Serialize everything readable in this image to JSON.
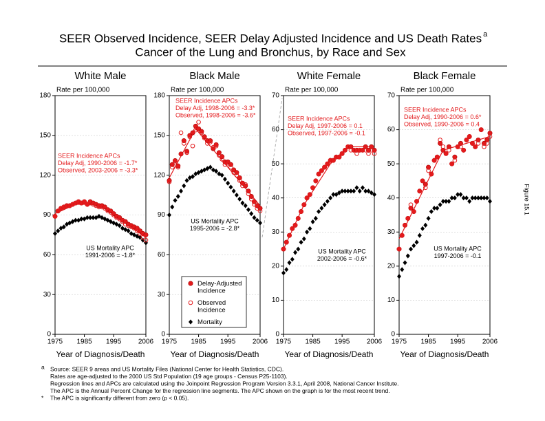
{
  "header": {
    "title": [
      "SEER Observed Incidence, SEER Delay Adjusted Incidence and US Death Rates",
      "Cancer of the Lung and Bronchus, by Race and Sex"
    ],
    "superscript": "a"
  },
  "figure_label": "Figure 15.1",
  "footnotes": [
    {
      "mark": "a",
      "lines": [
        "Source: SEER 9 areas and US Mortality Files (National Center for Health Statistics, CDC).",
        "Rates are age-adjusted to the 2000 US Std Population (19 age groups - Census P25-1103).",
        "Regression lines and APCs are calculated using the Joinpoint Regression Program Version 3.3.1, April 2008, National Cancer Institute.",
        "The APC is the Annual Percent Change for the regression line segments. The APC shown on the graph is for the most recent trend."
      ]
    },
    {
      "mark": "*",
      "lines": [
        "The APC is significantly different from zero (p < 0.05)."
      ]
    }
  ],
  "chart_data": [
    {
      "type": "scatter",
      "title": "White Male",
      "ylabel": "Rate per 100,000",
      "xlabel": "Year of Diagnosis/Death",
      "x": [
        1975,
        1976,
        1977,
        1978,
        1979,
        1980,
        1981,
        1982,
        1983,
        1984,
        1985,
        1986,
        1987,
        1988,
        1989,
        1990,
        1991,
        1992,
        1993,
        1994,
        1995,
        1996,
        1997,
        1998,
        1999,
        2000,
        2001,
        2002,
        2003,
        2004,
        2005,
        2006
      ],
      "xlim": [
        1975,
        2006
      ],
      "xticks": [
        1975,
        1985,
        1995,
        2006
      ],
      "ylim": [
        0,
        180
      ],
      "yticks": [
        0,
        30,
        60,
        90,
        120,
        150,
        180
      ],
      "grid": true,
      "series": [
        {
          "marker": "filled-circle",
          "color": "#e31a1c",
          "values": [
            89,
            93,
            95,
            96,
            97,
            97,
            98,
            99,
            100,
            99,
            100,
            98,
            100,
            99,
            98,
            97,
            97,
            96,
            94,
            93,
            91,
            89,
            88,
            86,
            85,
            83,
            82,
            81,
            80,
            78,
            76,
            75
          ]
        },
        {
          "marker": "open-circle",
          "color": "#e31a1c",
          "values": [
            89,
            93,
            95,
            96,
            97,
            97,
            98,
            99,
            100,
            99,
            100,
            98,
            99,
            98,
            97,
            96,
            96,
            95,
            93,
            92,
            90,
            88,
            87,
            85,
            83,
            82,
            81,
            80,
            78,
            76,
            73,
            71
          ]
        },
        {
          "marker": "diamond",
          "color": "#000000",
          "values": [
            76,
            78,
            80,
            81,
            83,
            84,
            85,
            86,
            86,
            87,
            87,
            88,
            88,
            88,
            88,
            89,
            88,
            87,
            86,
            85,
            84,
            83,
            82,
            80,
            79,
            78,
            76,
            75,
            74,
            73,
            71,
            69
          ]
        }
      ],
      "trend": {
        "color": "#e31a1c",
        "x": [
          1975,
          1982,
          1990,
          2006
        ],
        "values": [
          91,
          98,
          98,
          73
        ]
      },
      "annotations": [
        {
          "color": "#e31a1c",
          "lines": [
            "SEER Incidence APCs",
            "Delay Adj, 1990-2006 = -1.7*",
            "Observed, 2003-2006 = -3.3*"
          ]
        },
        {
          "color": "#000000",
          "lines": [
            "US Mortality APC",
            "1991-2006 = -1.8*"
          ]
        }
      ]
    },
    {
      "type": "scatter",
      "title": "Black Male",
      "ylabel": "Rate per 100,000",
      "xlabel": "Year of Diagnosis/Death",
      "x": [
        1975,
        1976,
        1977,
        1978,
        1979,
        1980,
        1981,
        1982,
        1983,
        1984,
        1985,
        1986,
        1987,
        1988,
        1989,
        1990,
        1991,
        1992,
        1993,
        1994,
        1995,
        1996,
        1997,
        1998,
        1999,
        2000,
        2001,
        2002,
        2003,
        2004,
        2005,
        2006
      ],
      "xlim": [
        1975,
        2006
      ],
      "xticks": [
        1975,
        1985,
        1995,
        2006
      ],
      "ylim": [
        0,
        180
      ],
      "yticks": [
        0,
        30,
        60,
        90,
        120,
        150,
        180
      ],
      "grid": true,
      "legend": true,
      "series": [
        {
          "name": "Delay-Adjusted Incidence",
          "marker": "filled-circle",
          "color": "#e31a1c",
          "values": [
            116,
            128,
            131,
            127,
            136,
            146,
            138,
            150,
            152,
            157,
            155,
            153,
            149,
            146,
            146,
            140,
            143,
            137,
            134,
            130,
            130,
            128,
            124,
            122,
            118,
            114,
            112,
            108,
            104,
            100,
            97,
            95
          ]
        },
        {
          "name": "Observed Incidence",
          "marker": "open-circle",
          "color": "#e31a1c",
          "values": [
            115,
            126,
            130,
            126,
            152,
            144,
            137,
            149,
            142,
            154,
            160,
            152,
            148,
            144,
            145,
            141,
            142,
            135,
            132,
            128,
            129,
            126,
            122,
            120,
            116,
            112,
            113,
            106,
            102,
            98,
            95,
            93
          ]
        },
        {
          "name": "Mortality",
          "marker": "diamond",
          "color": "#000000",
          "values": [
            90,
            96,
            101,
            104,
            108,
            112,
            116,
            118,
            119,
            121,
            122,
            123,
            124,
            125,
            126,
            124,
            123,
            121,
            120,
            117,
            114,
            111,
            108,
            105,
            102,
            99,
            97,
            94,
            91,
            88,
            86,
            84
          ]
        }
      ],
      "trend": {
        "color": "#e31a1c",
        "x": [
          1975,
          1984,
          2006
        ],
        "values": [
          118,
          155,
          97
        ]
      },
      "annotations": [
        {
          "color": "#e31a1c",
          "lines": [
            "SEER Incidence APCs",
            "Delay Adj, 1998-2006 = -3.3*",
            "Observed, 1998-2006 = -3.6*"
          ]
        },
        {
          "color": "#000000",
          "lines": [
            "US Mortality APC",
            "1995-2006 = -2.8*"
          ]
        }
      ]
    },
    {
      "type": "scatter",
      "title": "White Female",
      "ylabel": "Rate per 100,000",
      "xlabel": "Year of Diagnosis/Death",
      "x": [
        1975,
        1976,
        1977,
        1978,
        1979,
        1980,
        1981,
        1982,
        1983,
        1984,
        1985,
        1986,
        1987,
        1988,
        1989,
        1990,
        1991,
        1992,
        1993,
        1994,
        1995,
        1996,
        1997,
        1998,
        1999,
        2000,
        2001,
        2002,
        2003,
        2004,
        2005,
        2006
      ],
      "xlim": [
        1975,
        2006
      ],
      "xticks": [
        1975,
        1985,
        1995,
        2006
      ],
      "ylim": [
        0,
        70
      ],
      "yticks": [
        0,
        10,
        20,
        30,
        40,
        50,
        60,
        70
      ],
      "grid": true,
      "series": [
        {
          "marker": "filled-circle",
          "color": "#e31a1c",
          "values": [
            25,
            27,
            29,
            31,
            32,
            34,
            36,
            38,
            40,
            41,
            43,
            45,
            47,
            48,
            49,
            50,
            51,
            51,
            52,
            52,
            53,
            54,
            55,
            55,
            54,
            54,
            54,
            54,
            55,
            54,
            55,
            54
          ]
        },
        {
          "marker": "open-circle",
          "color": "#e31a1c",
          "values": [
            25,
            27,
            29,
            31,
            32,
            34,
            36,
            38,
            40,
            41,
            43,
            45,
            47,
            48,
            49,
            50,
            51,
            51,
            52,
            52,
            53,
            54,
            55,
            54,
            54,
            53,
            54,
            54,
            54,
            53,
            54,
            53
          ]
        },
        {
          "marker": "diamond",
          "color": "#000000",
          "values": [
            18,
            19,
            21,
            22,
            24,
            25,
            27,
            28,
            30,
            31,
            33,
            34,
            36,
            37,
            38,
            39,
            40,
            41,
            41,
            41.5,
            42,
            42,
            42,
            42,
            42,
            43,
            42,
            43,
            42,
            42,
            41.5,
            41
          ]
        }
      ],
      "trend": {
        "color": "#e31a1c",
        "x": [
          1975,
          1982,
          1991,
          1997,
          2006
        ],
        "values": [
          25,
          38,
          50,
          55,
          55
        ]
      },
      "annotations": [
        {
          "color": "#e31a1c",
          "lines": [
            "SEER Incidence APCs",
            "Delay Adj, 1997-2006 = 0.1",
            "Observed, 1997-2006 = -0.1"
          ]
        },
        {
          "color": "#000000",
          "lines": [
            "US Mortality APC",
            "2002-2006 = -0.6*"
          ]
        }
      ]
    },
    {
      "type": "scatter",
      "title": "Black Female",
      "ylabel": "Rate per 100,000",
      "xlabel": "Year of Diagnosis/Death",
      "x": [
        1975,
        1976,
        1977,
        1978,
        1979,
        1980,
        1981,
        1982,
        1983,
        1984,
        1985,
        1986,
        1987,
        1988,
        1989,
        1990,
        1991,
        1992,
        1993,
        1994,
        1995,
        1996,
        1997,
        1998,
        1999,
        2000,
        2001,
        2002,
        2003,
        2004,
        2005,
        2006
      ],
      "xlim": [
        1975,
        2006
      ],
      "xticks": [
        1975,
        1985,
        1995,
        2006
      ],
      "ylim": [
        0,
        70
      ],
      "yticks": [
        0,
        10,
        20,
        30,
        40,
        50,
        60,
        70
      ],
      "grid": true,
      "series": [
        {
          "marker": "filled-circle",
          "color": "#e31a1c",
          "values": [
            25,
            29,
            32,
            34,
            37,
            36,
            39,
            42,
            45,
            44,
            49,
            47,
            51,
            52,
            56,
            54,
            53,
            55,
            50,
            52,
            55,
            56,
            54,
            57,
            58,
            56,
            55,
            57,
            60,
            56,
            57,
            59
          ]
        },
        {
          "marker": "open-circle",
          "color": "#e31a1c",
          "values": [
            25,
            29,
            32,
            34,
            38,
            36,
            39,
            42,
            45,
            43,
            48,
            47,
            51,
            52,
            57,
            55,
            53,
            54,
            50,
            51,
            55,
            55,
            54,
            57,
            58,
            56,
            55,
            56,
            60,
            55,
            56,
            58
          ]
        },
        {
          "marker": "diamond",
          "color": "#000000",
          "values": [
            17,
            19,
            21,
            23,
            25,
            26,
            27,
            29,
            31,
            32,
            34,
            36,
            37,
            37,
            38,
            39,
            39,
            39,
            40,
            40,
            41,
            41,
            40,
            40,
            39,
            40,
            40,
            40,
            40,
            40,
            40,
            39
          ]
        }
      ],
      "trend": {
        "color": "#e31a1c",
        "x": [
          1975,
          1990,
          2006
        ],
        "values": [
          28,
          54,
          58
        ]
      },
      "annotations": [
        {
          "color": "#e31a1c",
          "lines": [
            "SEER Incidence APCs",
            "Delay Adj, 1990-2006 = 0.6*",
            "Observed, 1990-2006 = 0.4"
          ]
        },
        {
          "color": "#000000",
          "lines": [
            "US Mortality APC",
            "1997-2006 = -0.1"
          ]
        }
      ]
    }
  ]
}
